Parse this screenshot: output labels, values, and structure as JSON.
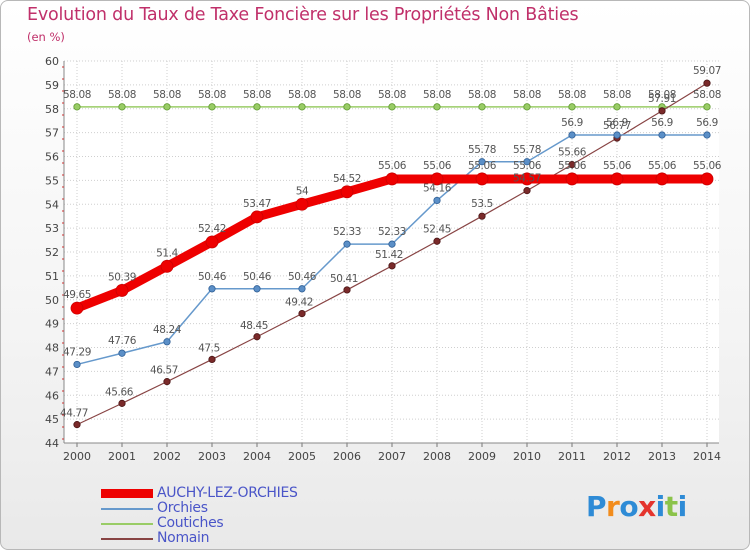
{
  "title": "Evolution du Taux de Taxe Foncière sur les Propriétés Non Bâties",
  "unit_label": "(en %)",
  "logo_text": "Proxiti",
  "chart_data": {
    "type": "line",
    "title": "Evolution du Taux de Taxe Foncière sur les Propriétés Non Bâties",
    "ylabel": "(en %)",
    "xlabel": "",
    "ylim": [
      44,
      60
    ],
    "yticks": [
      "44",
      "45",
      "46",
      "47",
      "48",
      "49",
      "50",
      "51",
      "52",
      "53",
      "54",
      "55",
      "56",
      "57",
      "58",
      "59",
      "60"
    ],
    "categories": [
      "2000",
      "2001",
      "2002",
      "2003",
      "2004",
      "2005",
      "2006",
      "2007",
      "2008",
      "2009",
      "2010",
      "2011",
      "2012",
      "2013",
      "2014"
    ],
    "legend_position": "bottom-left",
    "grid": true,
    "series": [
      {
        "name": "AUCHY-LEZ-ORCHIES",
        "color": "#ee0000",
        "values": [
          49.65,
          50.39,
          51.4,
          52.42,
          53.47,
          54,
          54.52,
          55.06,
          55.06,
          55.06,
          55.06,
          55.06,
          55.06,
          55.06,
          55.06
        ],
        "labels": [
          "49.65",
          "50.39",
          "51.4",
          "52.42",
          "53.47",
          "54",
          "54.52",
          "55.06",
          "55.06",
          "55.06",
          "55.06",
          "55.06",
          "55.06",
          "55.06",
          "55.06"
        ]
      },
      {
        "name": "Orchies",
        "color": "#6699cc",
        "values": [
          47.29,
          47.76,
          48.24,
          50.46,
          50.46,
          50.46,
          52.33,
          52.33,
          54.16,
          55.78,
          55.78,
          56.9,
          56.9,
          56.9,
          56.9
        ],
        "labels": [
          "47.29",
          "47.76",
          "48.24",
          "50.46",
          "50.46",
          "50.46",
          "52.33",
          "52.33",
          "54.16",
          "55.78",
          "55.78",
          "56.9",
          "56.9",
          "56.9",
          "56.9"
        ]
      },
      {
        "name": "Coutiches",
        "color": "#99cc66",
        "values": [
          58.08,
          58.08,
          58.08,
          58.08,
          58.08,
          58.08,
          58.08,
          58.08,
          58.08,
          58.08,
          58.08,
          58.08,
          58.08,
          58.08,
          58.08
        ],
        "labels": [
          "58.08",
          "58.08",
          "58.08",
          "58.08",
          "58.08",
          "58.08",
          "58.08",
          "58.08",
          "58.08",
          "58.08",
          "58.08",
          "58.08",
          "58.08",
          "58.08",
          "58.08"
        ]
      },
      {
        "name": "Nomain",
        "color": "#884444",
        "values": [
          44.77,
          45.66,
          46.57,
          47.5,
          48.45,
          49.42,
          50.41,
          51.42,
          52.45,
          53.5,
          54.57,
          55.66,
          56.77,
          57.91,
          59.07
        ],
        "labels": [
          "44.77",
          "45.66",
          "46.57",
          "47.5",
          "48.45",
          "49.42",
          "50.41",
          "51.42",
          "52.45",
          "53.5",
          "54.57",
          "55.66",
          "56.77",
          "57.91",
          "59.07"
        ]
      }
    ]
  }
}
